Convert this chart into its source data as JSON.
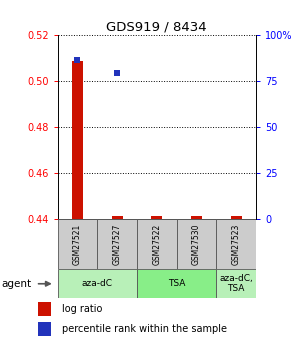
{
  "title": "GDS919 / 8434",
  "samples": [
    "GSM27521",
    "GSM27527",
    "GSM27522",
    "GSM27530",
    "GSM27523"
  ],
  "log_ratio": [
    0.5085,
    0.4415,
    0.4401,
    0.4401,
    0.4401
  ],
  "percentile_rank": [
    86.0,
    79.0,
    null,
    null,
    null
  ],
  "ylim_left": [
    0.44,
    0.52
  ],
  "ylim_right": [
    0,
    100
  ],
  "yticks_left": [
    0.44,
    0.46,
    0.48,
    0.5,
    0.52
  ],
  "yticks_right": [
    0,
    25,
    50,
    75,
    100
  ],
  "ytick_labels_left": [
    "0.44",
    "0.46",
    "0.48",
    "0.50",
    "0.52"
  ],
  "ytick_labels_right": [
    "0",
    "25",
    "50",
    "75",
    "100%"
  ],
  "bar_color": "#cc1100",
  "marker_color": "#2233bb",
  "agent_label": "agent",
  "legend_log_ratio": "log ratio",
  "legend_percentile": "percentile rank within the sample",
  "group_info": [
    [
      0,
      1,
      "aza-dC",
      "#b8f0b8"
    ],
    [
      2,
      3,
      "TSA",
      "#88ee88"
    ],
    [
      4,
      4,
      "aza-dC,\nTSA",
      "#b8f0b8"
    ]
  ]
}
